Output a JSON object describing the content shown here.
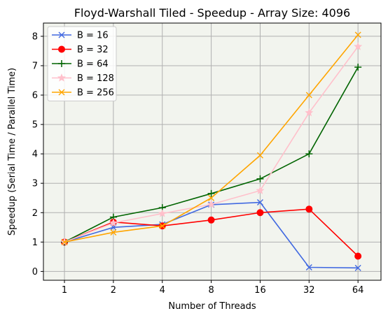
{
  "chart_data": {
    "type": "line",
    "title": "Floyd-Warshall Tiled - Speedup - Array Size: 4096",
    "xlabel": "Number of Threads",
    "ylabel": "Speedup (Serial Time / Parallel Time)",
    "x_scale": "log2",
    "x": [
      1,
      2,
      4,
      8,
      16,
      32,
      64
    ],
    "x_tick_labels": [
      "1",
      "2",
      "4",
      "8",
      "16",
      "32",
      "64"
    ],
    "y_ticks": [
      0,
      1,
      2,
      3,
      4,
      5,
      6,
      7,
      8
    ],
    "ylim": [
      -0.3,
      8.45
    ],
    "grid": true,
    "background_color": "#f2f4ee",
    "grid_color": "#b0b0b0",
    "legend_position": "top-left",
    "series": [
      {
        "name": "B = 16",
        "color": "#4169e1",
        "marker": "x",
        "values": [
          1.0,
          1.5,
          1.6,
          2.27,
          2.35,
          0.14,
          0.12
        ]
      },
      {
        "name": "B = 32",
        "color": "#ff0000",
        "marker": "circle",
        "values": [
          1.0,
          1.68,
          1.55,
          1.75,
          2.0,
          2.12,
          0.52
        ]
      },
      {
        "name": "B = 64",
        "color": "#006400",
        "marker": "plus",
        "values": [
          1.0,
          1.85,
          2.17,
          2.65,
          3.15,
          4.0,
          6.95
        ]
      },
      {
        "name": "B = 128",
        "color": "#ffc0cb",
        "marker": "star",
        "values": [
          1.0,
          1.65,
          1.97,
          2.28,
          2.75,
          5.4,
          7.65
        ]
      },
      {
        "name": "B = 256",
        "color": "#ffa500",
        "marker": "x",
        "values": [
          1.0,
          1.33,
          1.55,
          2.5,
          3.95,
          6.0,
          8.05
        ]
      }
    ]
  }
}
